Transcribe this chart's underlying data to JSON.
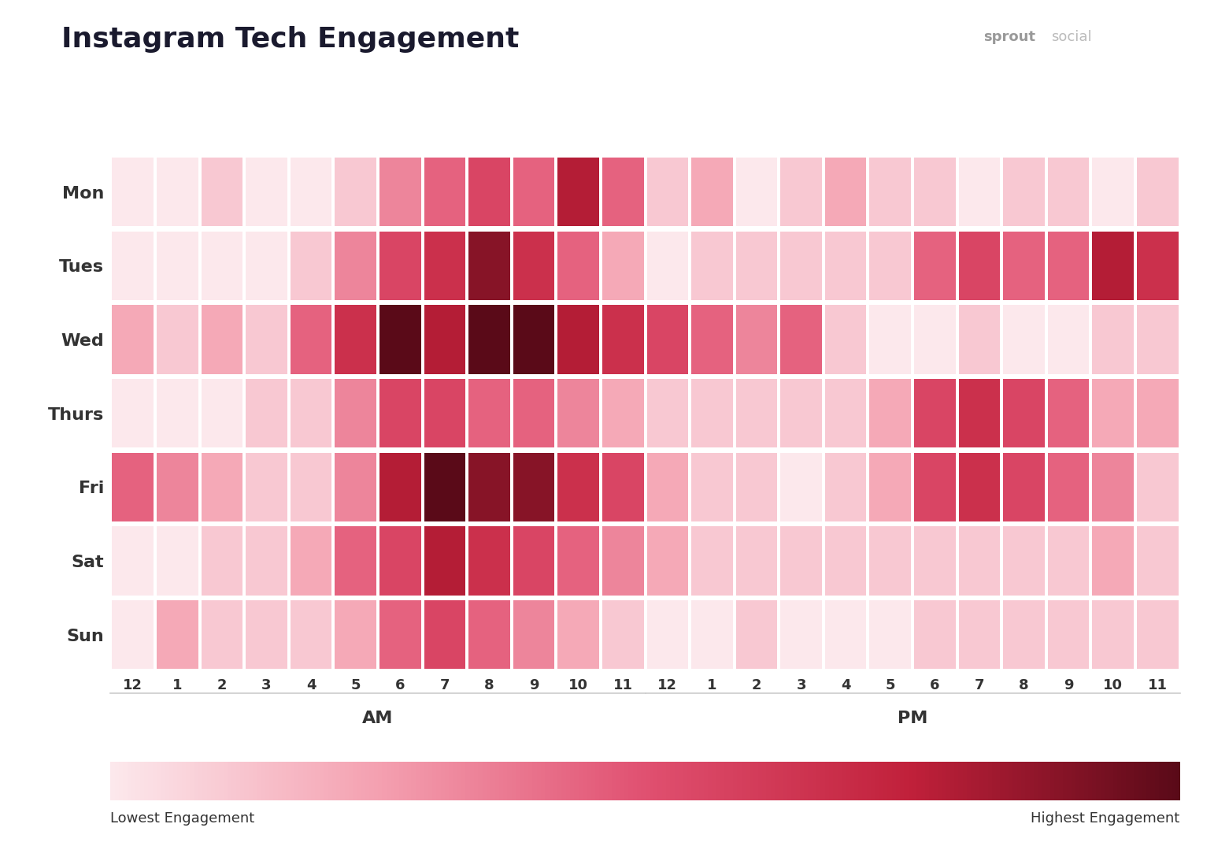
{
  "title": "Instagram Tech Engagement",
  "days": [
    "Mon",
    "Tues",
    "Wed",
    "Thurs",
    "Fri",
    "Sat",
    "Sun"
  ],
  "hours": [
    "12",
    "1",
    "2",
    "3",
    "4",
    "5",
    "6",
    "7",
    "8",
    "9",
    "10",
    "11",
    "12",
    "1",
    "2",
    "3",
    "4",
    "5",
    "6",
    "7",
    "8",
    "9",
    "10",
    "11"
  ],
  "am_label": "AM",
  "pm_label": "PM",
  "legend_low": "Lowest Engagement",
  "legend_high": "Highest Engagement",
  "background_color": "#ffffff",
  "title_color": "#1a1a2e",
  "label_color": "#333333",
  "colormap_colors": [
    "#fce8ec",
    "#f4a0b0",
    "#e05070",
    "#c0203a",
    "#5a0a18"
  ],
  "vmin": 1,
  "vmax": 10,
  "engagement": [
    [
      1,
      1,
      2,
      1,
      1,
      2,
      4,
      5,
      6,
      5,
      8,
      5,
      2,
      3,
      1,
      2,
      3,
      2,
      2,
      1,
      2,
      2,
      1,
      2
    ],
    [
      1,
      1,
      1,
      1,
      2,
      4,
      6,
      7,
      9,
      7,
      5,
      3,
      1,
      2,
      2,
      2,
      2,
      2,
      5,
      6,
      5,
      5,
      8,
      7
    ],
    [
      3,
      2,
      3,
      2,
      5,
      7,
      10,
      8,
      10,
      10,
      8,
      7,
      6,
      5,
      4,
      5,
      2,
      1,
      1,
      2,
      1,
      1,
      2,
      2
    ],
    [
      1,
      1,
      1,
      2,
      2,
      4,
      6,
      6,
      5,
      5,
      4,
      3,
      2,
      2,
      2,
      2,
      2,
      3,
      6,
      7,
      6,
      5,
      3,
      3
    ],
    [
      5,
      4,
      3,
      2,
      2,
      4,
      8,
      10,
      9,
      9,
      7,
      6,
      3,
      2,
      2,
      1,
      2,
      3,
      6,
      7,
      6,
      5,
      4,
      2
    ],
    [
      1,
      1,
      2,
      2,
      3,
      5,
      6,
      8,
      7,
      6,
      5,
      4,
      3,
      2,
      2,
      2,
      2,
      2,
      2,
      2,
      2,
      2,
      3,
      2
    ],
    [
      1,
      3,
      2,
      2,
      2,
      3,
      5,
      6,
      5,
      4,
      3,
      2,
      1,
      1,
      2,
      1,
      1,
      1,
      2,
      2,
      2,
      2,
      2,
      2
    ]
  ]
}
